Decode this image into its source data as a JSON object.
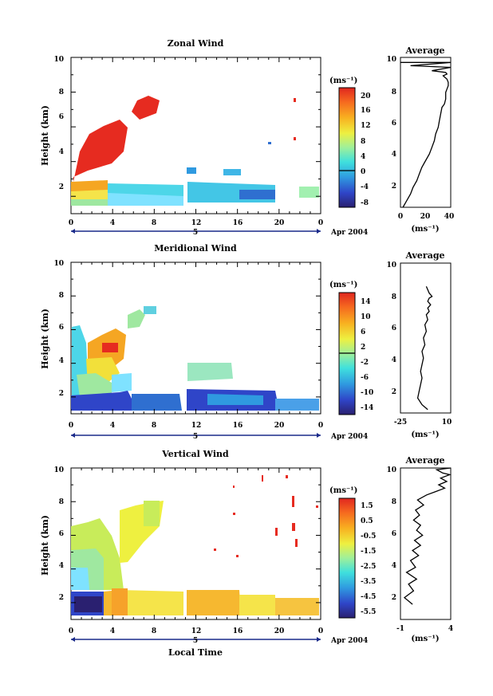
{
  "footer": {
    "month_label": "Apr 2004",
    "day_label": "5",
    "xlabel": "Local Time"
  },
  "units": "(ms⁻¹)",
  "chart_data": [
    {
      "type": "heatmap",
      "title": "Zonal Wind",
      "ylabel": "Height (km)",
      "xlabel": "",
      "xlim": [
        0,
        24
      ],
      "ylim": [
        1,
        10
      ],
      "x_ticks": [
        "0",
        "4",
        "8",
        "12",
        "16",
        "20",
        "0"
      ],
      "y_ticks": [
        "2",
        "4",
        "6",
        "8",
        "10"
      ],
      "colorbar": {
        "unit": "(ms⁻¹)",
        "range": [
          -8,
          22
        ],
        "ticks": [
          "20",
          "16",
          "12",
          "8",
          "4",
          "0",
          "-4",
          "-8"
        ],
        "zero_line": 0
      },
      "profile": {
        "type": "line",
        "title": "Average",
        "xlabel": "(ms⁻¹)",
        "xlim": [
          0,
          40
        ],
        "x_ticks": [
          "0",
          "20",
          "40"
        ],
        "ylim": [
          1,
          10
        ],
        "y_ticks": [
          "2",
          "4",
          "6",
          "8",
          "10"
        ],
        "x": [
          2,
          5,
          8,
          10,
          13,
          15,
          17,
          20,
          23,
          25,
          27,
          28,
          30,
          31,
          32,
          33,
          35,
          36,
          36,
          36,
          37,
          38,
          38,
          37,
          34,
          37,
          36,
          25,
          40,
          8,
          40,
          0
        ],
        "y": [
          1.0,
          1.4,
          1.8,
          2.2,
          2.6,
          3.0,
          3.4,
          3.8,
          4.2,
          4.6,
          5.0,
          5.4,
          5.8,
          6.2,
          6.6,
          7.0,
          7.2,
          7.5,
          7.7,
          7.9,
          8.1,
          8.3,
          8.5,
          8.7,
          8.9,
          9.0,
          9.1,
          9.2,
          9.4,
          9.5,
          9.7,
          9.7
        ]
      }
    },
    {
      "type": "heatmap",
      "title": "Meridional Wind",
      "ylabel": "Height (km)",
      "xlabel": "",
      "xlim": [
        0,
        24
      ],
      "ylim": [
        1,
        10
      ],
      "x_ticks": [
        "0",
        "4",
        "8",
        "12",
        "16",
        "20",
        "0"
      ],
      "y_ticks": [
        "2",
        "4",
        "6",
        "8",
        "10"
      ],
      "colorbar": {
        "unit": "(ms⁻¹)",
        "range": [
          -16,
          16
        ],
        "ticks": [
          "14",
          "10",
          "6",
          "2",
          "-2",
          "-6",
          "-10",
          "-14"
        ],
        "zero_line": 0
      },
      "profile": {
        "type": "line",
        "title": "Average",
        "xlabel": "(ms⁻¹)",
        "xlim": [
          -25,
          10
        ],
        "x_ticks": [
          "-25",
          "10"
        ],
        "ylim": [
          1,
          10
        ],
        "y_ticks": [
          "2",
          "4",
          "6",
          "8",
          "10"
        ],
        "x": [
          -6,
          -10,
          -13,
          -12,
          -11,
          -10,
          -11,
          -10,
          -9,
          -10,
          -8,
          -9,
          -7,
          -8,
          -6,
          -7,
          -5,
          -6,
          -4,
          -5,
          -6,
          -5,
          -3,
          -5,
          -6,
          -7
        ],
        "y": [
          1.2,
          1.5,
          1.9,
          2.3,
          2.7,
          3.1,
          3.5,
          3.9,
          4.3,
          4.7,
          5.1,
          5.5,
          5.9,
          6.3,
          6.6,
          6.9,
          7.1,
          7.3,
          7.5,
          7.6,
          7.7,
          7.9,
          8.0,
          8.2,
          8.4,
          8.6
        ]
      }
    },
    {
      "type": "heatmap",
      "title": "Vertical Wind",
      "ylabel": "Height (km)",
      "xlabel": "Local Time",
      "xlim": [
        0,
        24
      ],
      "ylim": [
        1,
        10
      ],
      "x_ticks": [
        "0",
        "4",
        "8",
        "12",
        "16",
        "20",
        "0"
      ],
      "y_ticks": [
        "2",
        "4",
        "6",
        "8",
        "10"
      ],
      "colorbar": {
        "unit": "(ms⁻¹)",
        "range": [
          -7,
          2.5
        ],
        "ticks": [
          "1.5",
          "0.5",
          "-0.5",
          "-1.5",
          "-2.5",
          "-3.5",
          "-4.5",
          "-5.5"
        ]
      },
      "profile": {
        "type": "line",
        "title": "Average",
        "xlabel": "(ms⁻¹)",
        "xlim": [
          -1,
          4
        ],
        "x_ticks": [
          "-1",
          "4"
        ],
        "ylim": [
          1,
          10
        ],
        "y_ticks": [
          "2",
          "4",
          "6",
          "8",
          "10"
        ],
        "x": [
          0.2,
          -0.6,
          0.3,
          -0.2,
          0.6,
          -0.4,
          0.5,
          0.0,
          0.8,
          0.2,
          1.0,
          0.4,
          1.2,
          0.6,
          1.0,
          0.3,
          0.9,
          0.5,
          1.3,
          0.7,
          1.6,
          2.5,
          3.4,
          2.8,
          3.6,
          3.0,
          3.9,
          3.2,
          2.6,
          4.0
        ],
        "y": [
          1.9,
          2.3,
          2.7,
          3.1,
          3.4,
          3.8,
          4.1,
          4.5,
          4.8,
          5.1,
          5.4,
          5.7,
          6.0,
          6.3,
          6.6,
          6.9,
          7.2,
          7.5,
          7.8,
          8.1,
          8.4,
          8.6,
          8.8,
          9.0,
          9.2,
          9.4,
          9.6,
          9.7,
          9.9,
          10.0
        ]
      }
    }
  ]
}
